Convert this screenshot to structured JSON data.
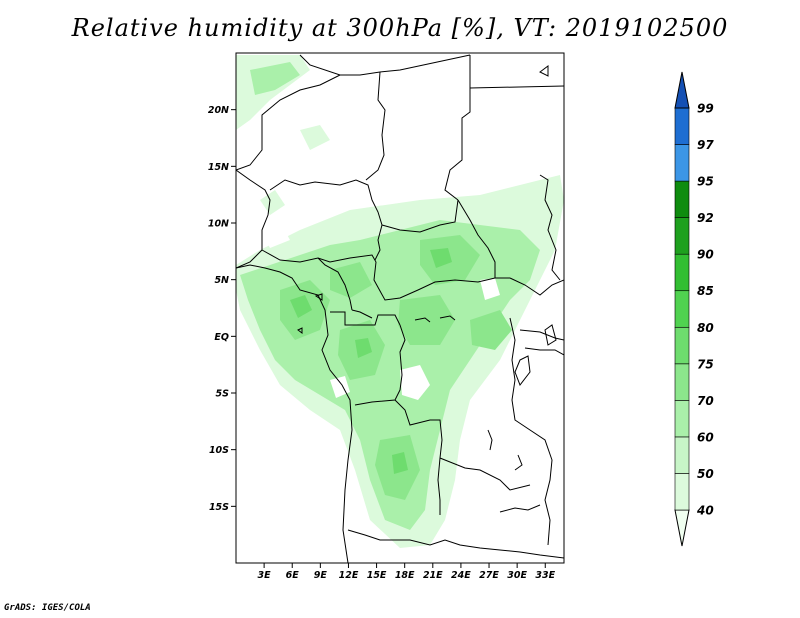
{
  "title": "Relative humidity at 300hPa [%], VT: 2019102500",
  "credit": "GrADS: IGES/COLA",
  "map": {
    "lat_range": [
      -20,
      25
    ],
    "lon_range": [
      0,
      35
    ],
    "lat_ticks": [
      {
        "value": 20,
        "label": "20N"
      },
      {
        "value": 15,
        "label": "15N"
      },
      {
        "value": 10,
        "label": "10N"
      },
      {
        "value": 5,
        "label": "5N"
      },
      {
        "value": 0,
        "label": "EQ"
      },
      {
        "value": -5,
        "label": "5S"
      },
      {
        "value": -10,
        "label": "10S"
      },
      {
        "value": -15,
        "label": "15S"
      }
    ],
    "lon_ticks": [
      {
        "value": 3,
        "label": "3E"
      },
      {
        "value": 6,
        "label": "6E"
      },
      {
        "value": 9,
        "label": "9E"
      },
      {
        "value": 12,
        "label": "12E"
      },
      {
        "value": 15,
        "label": "15E"
      },
      {
        "value": 18,
        "label": "18E"
      },
      {
        "value": 21,
        "label": "21E"
      },
      {
        "value": 24,
        "label": "24E"
      },
      {
        "value": 27,
        "label": "27E"
      },
      {
        "value": 30,
        "label": "30E"
      },
      {
        "value": 33,
        "label": "33E"
      }
    ]
  },
  "legend": {
    "levels": [
      "40",
      "50",
      "60",
      "70",
      "75",
      "80",
      "85",
      "90",
      "92",
      "95",
      "97",
      "99"
    ],
    "colors": [
      "#f0fff0",
      "#dcfadc",
      "#c8f5c8",
      "#aaf0aa",
      "#8ce68c",
      "#6edc6e",
      "#50d250",
      "#32be32",
      "#1ea01e",
      "#0f8c0f",
      "#3c96e6",
      "#1e6ed2",
      "#1450b4"
    ]
  }
}
